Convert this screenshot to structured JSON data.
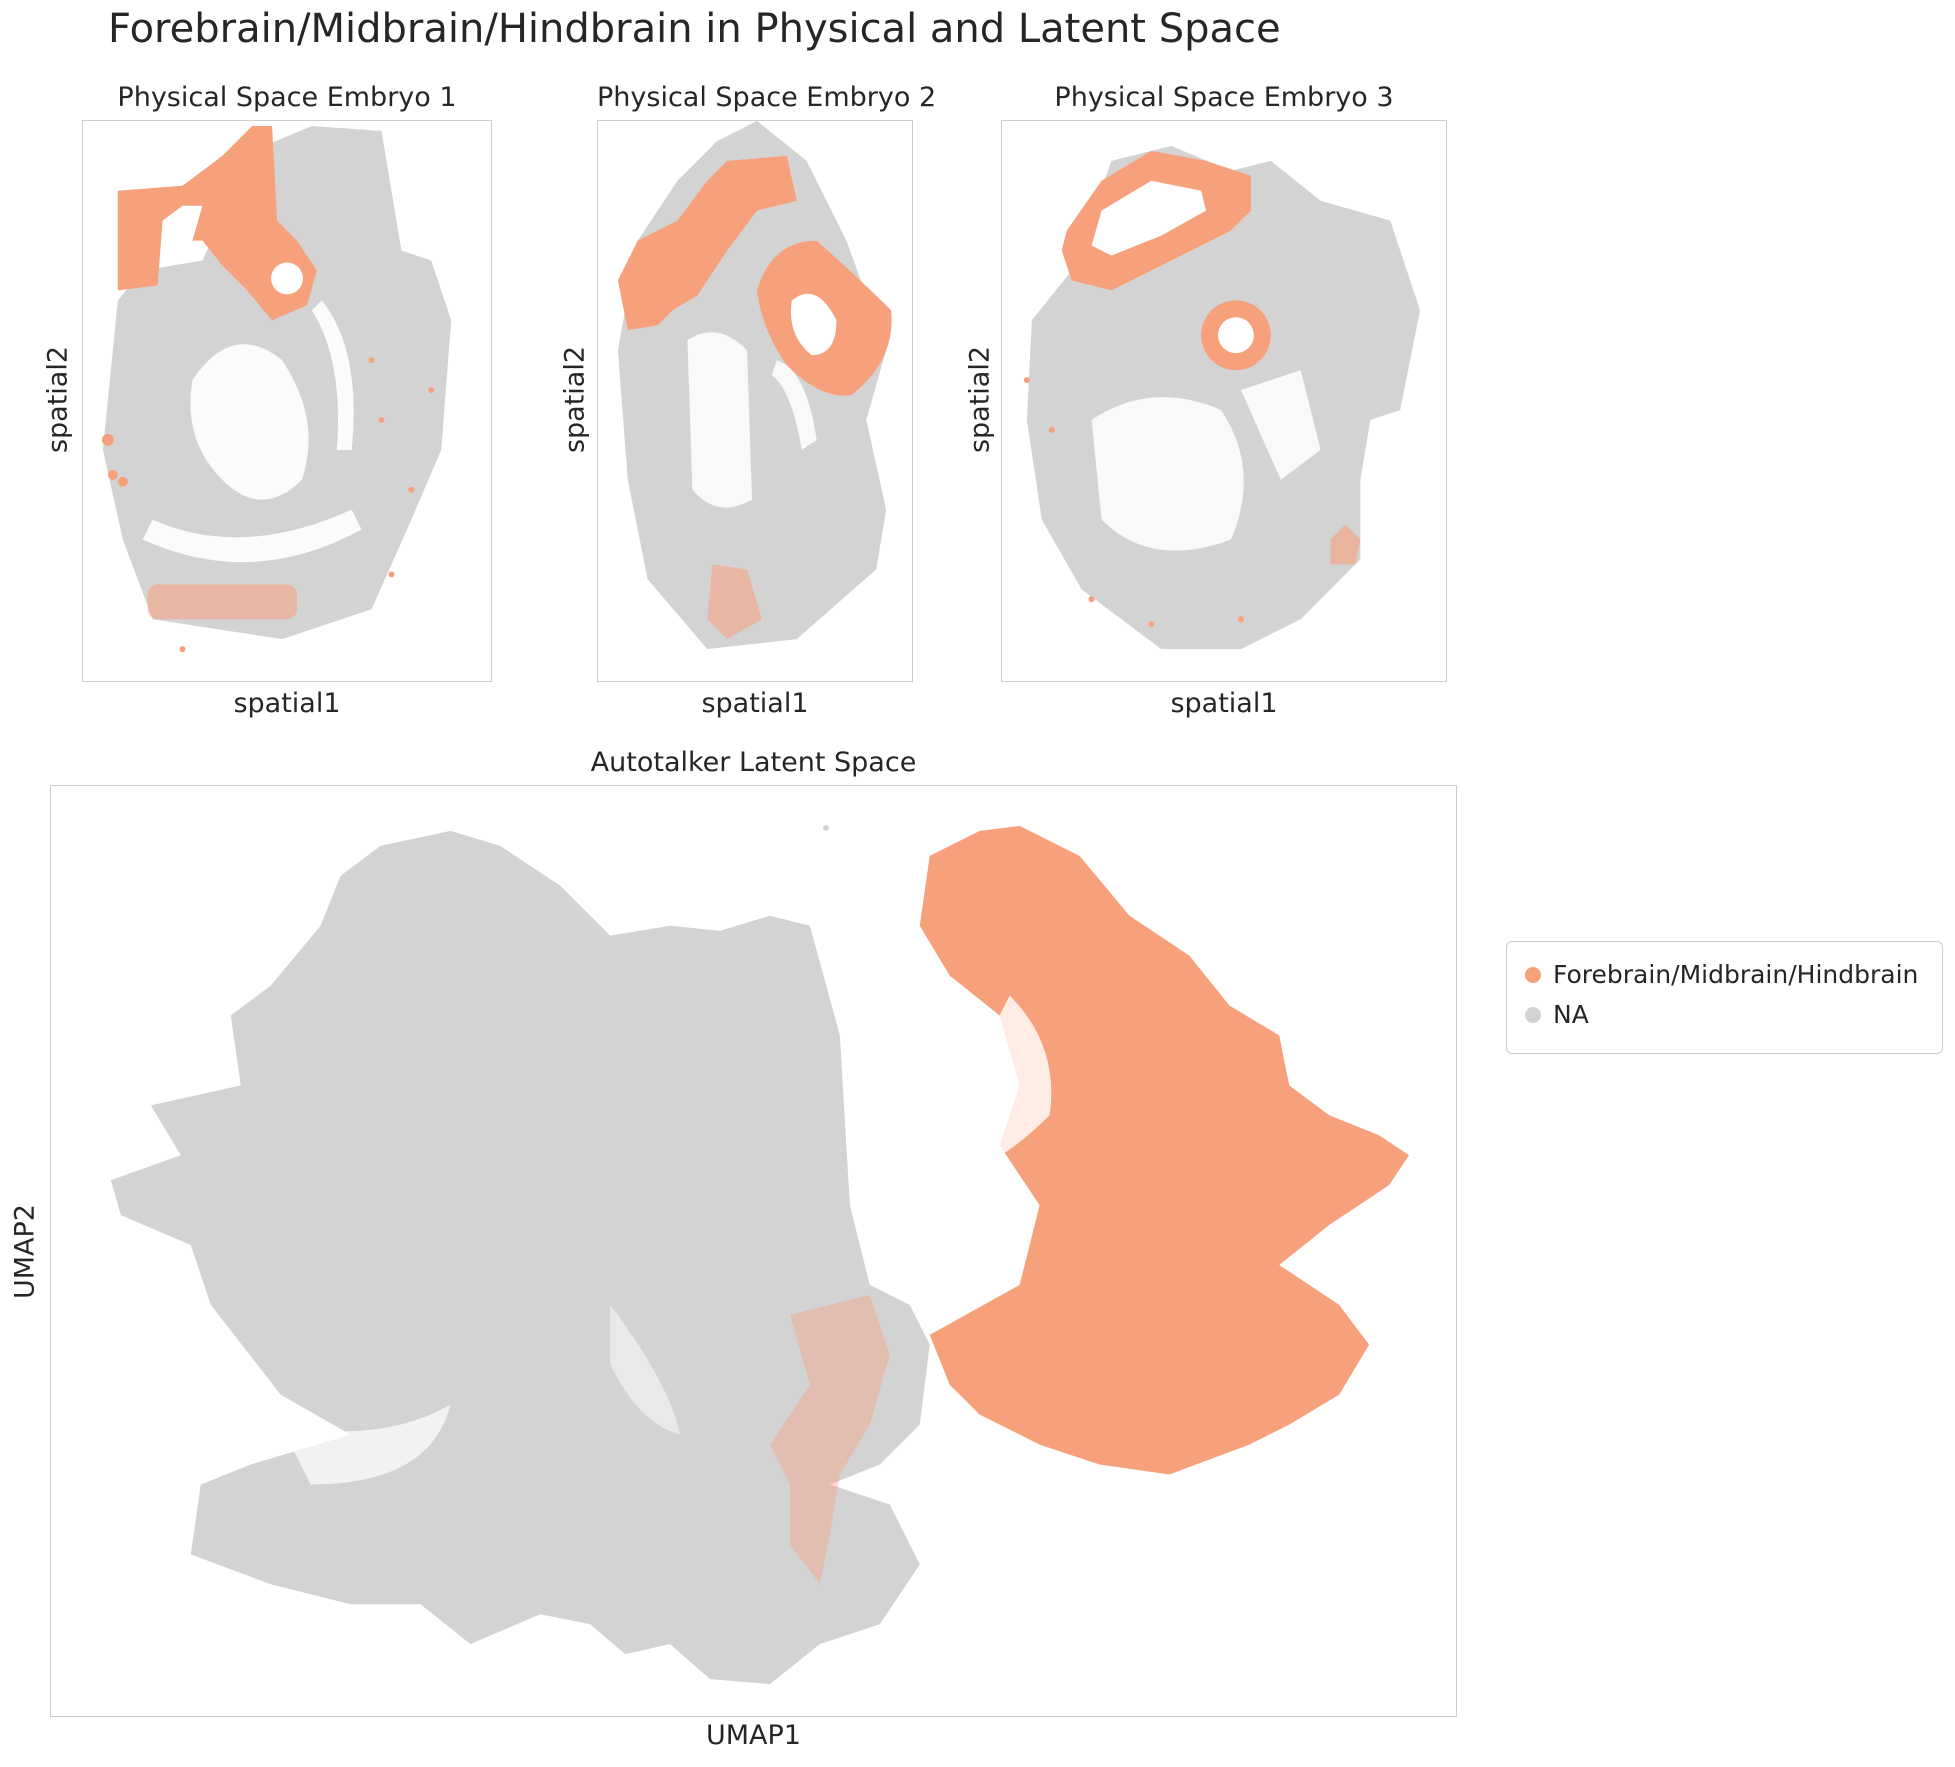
{
  "figure_title": "Forebrain/Midbrain/Hindbrain in Physical and Latent Space",
  "colors": {
    "highlight": "#f7a07c",
    "na": "#d3d3d3"
  },
  "legend": {
    "items": [
      {
        "label": "Forebrain/Midbrain/Hindbrain",
        "color": "#f7a07c"
      },
      {
        "label": "NA",
        "color": "#d3d3d3"
      }
    ]
  },
  "chart_data": [
    {
      "type": "scatter",
      "title": "Physical Space Embryo 1",
      "xlabel": "spatial1",
      "ylabel": "spatial2",
      "ticks": "none",
      "series": [
        {
          "name": "NA",
          "color": "#d3d3d3",
          "description": "embryo tissue sagittal section"
        },
        {
          "name": "Forebrain/Midbrain/Hindbrain",
          "color": "#f7a07c",
          "description": "upper brain region ring, sparse points along lower edge"
        }
      ]
    },
    {
      "type": "scatter",
      "title": "Physical Space Embryo 2",
      "xlabel": "spatial1",
      "ylabel": "spatial2",
      "ticks": "none",
      "series": [
        {
          "name": "NA",
          "color": "#d3d3d3"
        },
        {
          "name": "Forebrain/Midbrain/Hindbrain",
          "color": "#f7a07c"
        }
      ]
    },
    {
      "type": "scatter",
      "title": "Physical Space Embryo 3",
      "xlabel": "spatial1",
      "ylabel": "spatial2",
      "ticks": "none",
      "series": [
        {
          "name": "NA",
          "color": "#d3d3d3"
        },
        {
          "name": "Forebrain/Midbrain/Hindbrain",
          "color": "#f7a07c"
        }
      ]
    },
    {
      "type": "scatter",
      "title": "Autotalker Latent Space",
      "xlabel": "UMAP1",
      "ylabel": "UMAP2",
      "ticks": "none",
      "legend_position": "right",
      "series": [
        {
          "name": "NA",
          "color": "#d3d3d3"
        },
        {
          "name": "Forebrain/Midbrain/Hindbrain",
          "color": "#f7a07c"
        }
      ]
    }
  ]
}
